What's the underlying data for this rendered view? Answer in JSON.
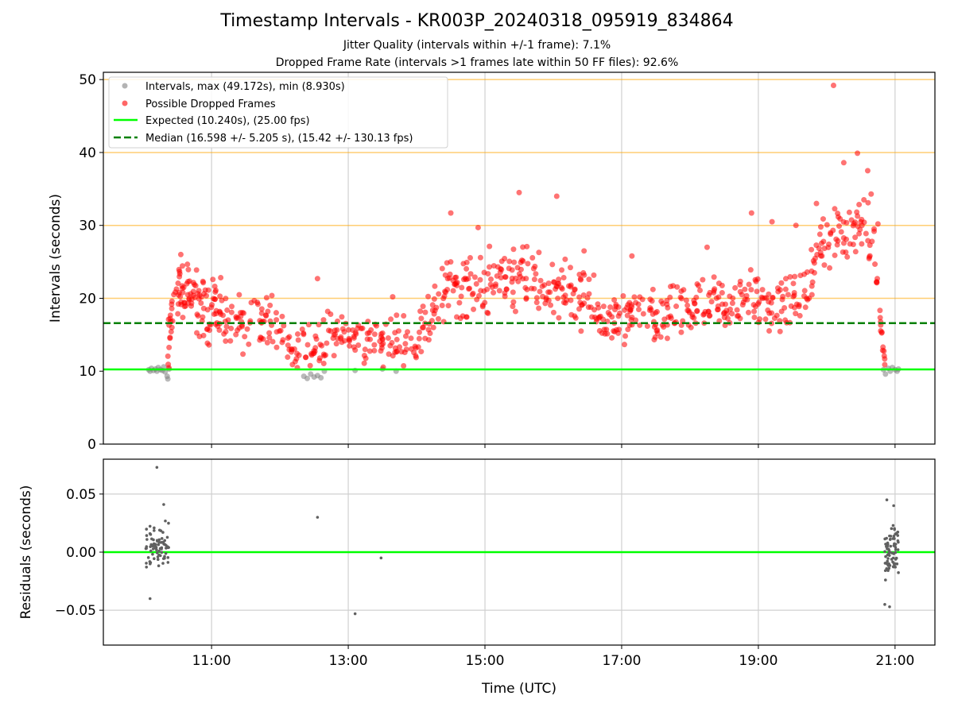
{
  "chart_data": {
    "title": "Timestamp Intervals - KR003P_20240318_095919_834864",
    "subtitle_1": "Jitter Quality (intervals within +/-1 frame): 7.1%",
    "subtitle_2": "Dropped Frame Rate (intervals >1 frames late within 50 FF files): 92.6%",
    "panels": [
      {
        "type": "scatter",
        "ylabel": "Intervals (seconds)",
        "ylim": [
          0,
          51
        ],
        "yticks": [
          0,
          10,
          20,
          30,
          40,
          50
        ],
        "hlines_orange": [
          20,
          30,
          40,
          50
        ],
        "expected_line": 10.24,
        "median_line": 16.598,
        "legend": {
          "placement": "upper-left",
          "entries": [
            "Intervals, max (49.172s), min (8.930s)",
            "Possible Dropped Frames",
            "Expected (10.240s), (25.00 fps)",
            "Median (16.598 +/- 5.205 s), (15.42 +/- 130.13 fps)"
          ]
        },
        "series": [
          {
            "name": "Intervals, max (49.172s), min (8.930s)",
            "color": "#808080",
            "points": [
              [
                10.08,
                10.2
              ],
              [
                10.1,
                10.0
              ],
              [
                10.12,
                10.4
              ],
              [
                10.15,
                10.1
              ],
              [
                10.18,
                10.3
              ],
              [
                10.2,
                10.0
              ],
              [
                10.22,
                10.5
              ],
              [
                10.25,
                10.2
              ],
              [
                10.28,
                10.1
              ],
              [
                10.3,
                10.6
              ],
              [
                10.32,
                9.9
              ],
              [
                10.35,
                9.3
              ],
              [
                10.36,
                8.93
              ],
              [
                10.38,
                10.3
              ],
              [
                12.35,
                9.3
              ],
              [
                12.4,
                9.0
              ],
              [
                12.45,
                9.6
              ],
              [
                12.5,
                9.2
              ],
              [
                12.55,
                9.4
              ],
              [
                12.6,
                9.1
              ],
              [
                12.65,
                10.0
              ],
              [
                13.1,
                10.1
              ],
              [
                13.5,
                10.3
              ],
              [
                13.7,
                10.0
              ],
              [
                20.83,
                10.2
              ],
              [
                20.86,
                9.6
              ],
              [
                20.9,
                10.4
              ],
              [
                20.93,
                10.0
              ],
              [
                20.96,
                10.5
              ],
              [
                21.0,
                10.2
              ],
              [
                21.03,
                10.0
              ],
              [
                21.05,
                10.3
              ]
            ]
          },
          {
            "name": "Possible Dropped Frames",
            "color": "#ff0000",
            "band": [
              [
                10.35,
                10.6,
                16,
                17
              ],
              [
                10.45,
                21,
                14,
                18
              ],
              [
                10.6,
                21,
                14,
                21
              ],
              [
                10.75,
                20,
                16,
                20
              ],
              [
                10.9,
                19,
                16,
                19
              ],
              [
                11.05,
                18,
                15,
                17
              ],
              [
                11.2,
                17,
                14,
                16
              ],
              [
                11.4,
                16,
                14,
                15
              ],
              [
                11.6,
                16.5,
                14,
                16
              ],
              [
                11.8,
                16,
                15,
                15
              ],
              [
                12.0,
                15.5,
                14,
                15
              ],
              [
                12.2,
                14.5,
                12,
                13
              ],
              [
                12.4,
                13,
                11,
                12
              ],
              [
                12.55,
                13.5,
                12,
                11
              ],
              [
                12.7,
                14.5,
                11,
                13
              ],
              [
                12.9,
                15,
                11,
                15
              ],
              [
                13.1,
                14.5,
                11,
                15
              ],
              [
                13.3,
                14.5,
                12,
                15
              ],
              [
                13.5,
                14,
                12,
                15
              ],
              [
                13.7,
                14.5,
                12,
                14
              ],
              [
                13.9,
                14,
                12,
                14
              ],
              [
                14.1,
                15.5,
                13,
                17
              ],
              [
                14.3,
                19,
                14,
                17
              ],
              [
                14.5,
                22,
                15,
                17
              ],
              [
                14.7,
                22,
                15,
                16
              ],
              [
                14.9,
                21.5,
                14,
                17
              ],
              [
                15.1,
                22.5,
                15,
                17
              ],
              [
                15.3,
                23,
                15,
                17
              ],
              [
                15.5,
                22.5,
                15,
                17
              ],
              [
                15.7,
                22,
                15,
                17
              ],
              [
                15.9,
                22,
                15,
                17
              ],
              [
                16.1,
                21.5,
                14,
                17
              ],
              [
                16.3,
                20.5,
                14,
                17
              ],
              [
                16.5,
                19,
                14,
                17
              ],
              [
                16.7,
                17.5,
                13,
                17
              ],
              [
                16.9,
                17,
                13,
                17
              ],
              [
                17.1,
                17,
                13,
                17
              ],
              [
                17.3,
                17.5,
                13,
                16
              ],
              [
                17.5,
                17,
                13,
                16
              ],
              [
                17.7,
                17.5,
                13,
                16
              ],
              [
                17.9,
                18,
                14,
                16
              ],
              [
                18.1,
                18.5,
                14,
                16
              ],
              [
                18.3,
                19,
                14,
                16
              ],
              [
                18.5,
                19,
                14,
                16
              ],
              [
                18.7,
                19.5,
                14,
                16
              ],
              [
                18.9,
                20,
                14,
                16
              ],
              [
                19.1,
                19,
                14,
                16
              ],
              [
                19.3,
                19,
                14,
                16
              ],
              [
                19.5,
                20,
                14,
                16
              ],
              [
                19.7,
                21,
                14,
                15
              ],
              [
                19.9,
                26,
                14,
                17
              ],
              [
                20.1,
                29,
                14,
                17
              ],
              [
                20.3,
                29,
                14,
                17
              ],
              [
                20.5,
                30,
                14,
                16
              ],
              [
                20.7,
                27,
                12,
                14
              ],
              [
                20.8,
                15,
                10,
                6
              ],
              [
                20.86,
                10.5,
                1.5,
                9
              ]
            ],
            "extra_points": [
              [
                10.55,
                26
              ],
              [
                11.15,
                19.7
              ],
              [
                12.55,
                22.7
              ],
              [
                13.65,
                20.2
              ],
              [
                14.5,
                31.7
              ],
              [
                14.9,
                29.7
              ],
              [
                15.5,
                34.5
              ],
              [
                16.05,
                34
              ],
              [
                16.45,
                26.5
              ],
              [
                17.15,
                25.8
              ],
              [
                18.25,
                27
              ],
              [
                18.9,
                31.7
              ],
              [
                19.2,
                30.5
              ],
              [
                19.55,
                30
              ],
              [
                19.85,
                33
              ],
              [
                20.1,
                49.2
              ],
              [
                20.25,
                38.6
              ],
              [
                20.45,
                39.9
              ],
              [
                20.6,
                37.5
              ],
              [
                20.65,
                34.3
              ],
              [
                20.75,
                30.2
              ]
            ]
          }
        ]
      },
      {
        "type": "scatter",
        "xlabel": "Time (UTC)",
        "ylabel": "Residuals (seconds)",
        "ylim": [
          -0.08,
          0.08
        ],
        "yticks": [
          "0.05",
          "0.00",
          "−0.05"
        ],
        "ytick_values": [
          0.05,
          0,
          -0.05
        ],
        "zero_line": 0,
        "color": "#606060",
        "clusters": [
          [
            10.03,
            10.38,
            78,
            -0.02,
            0.03
          ],
          [
            20.85,
            21.05,
            72,
            -0.02,
            0.025
          ]
        ],
        "points": [
          [
            10.2,
            0.073
          ],
          [
            10.1,
            -0.04
          ],
          [
            10.3,
            0.041
          ],
          [
            12.55,
            0.03
          ],
          [
            13.48,
            -0.005
          ],
          [
            13.1,
            -0.053
          ],
          [
            20.88,
            0.045
          ],
          [
            20.85,
            -0.045
          ],
          [
            20.92,
            -0.047
          ],
          [
            20.86,
            -0.024
          ],
          [
            20.98,
            0.04
          ]
        ]
      }
    ],
    "x_axis": {
      "type": "time",
      "range": [
        "09:25",
        "21:35"
      ],
      "ticks": [
        11,
        13,
        15,
        17,
        19,
        21
      ],
      "tick_labels": [
        "11:00",
        "13:00",
        "15:00",
        "17:00",
        "19:00",
        "21:00"
      ]
    },
    "grid": true
  },
  "colors": {
    "expected": "#00ff00",
    "median": "#008000",
    "orange_lines": "#ffa500",
    "dropped": "#ff0000",
    "intervals": "#808080"
  }
}
